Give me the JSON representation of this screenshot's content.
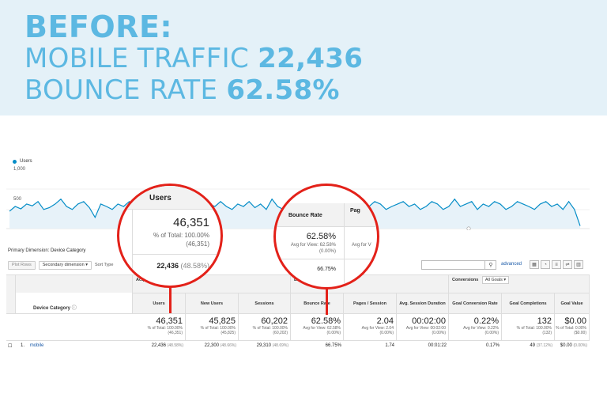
{
  "banner": {
    "before": "BEFORE:",
    "line2_label": "MOBILE TRAFFIC ",
    "line2_value": "22,436",
    "line3_label": "BOUNCE RATE ",
    "line3_value": "62.58%"
  },
  "chart": {
    "legend": "Users",
    "ytick_top": "1,000",
    "ytick_mid": "500"
  },
  "primary_dimension": {
    "label": "Primary Dimension:",
    "value": "Device Category"
  },
  "toolbar": {
    "plot_rows": "Plot Rows",
    "secondary_dimension": "Secondary dimension",
    "sort_type": "Sort Type",
    "advanced": "advanced"
  },
  "table": {
    "device_category": "Device Category",
    "acquisition": "Acquisition",
    "behavior": "Behavior",
    "conversions": "Conversions",
    "all_goals": "All Goals",
    "columns": [
      "Users",
      "New Users",
      "Sessions",
      "Bounce Rate",
      "Pages / Session",
      "Avg. Session Duration",
      "Goal Conversion Rate",
      "Goal Completions",
      "Goal Value"
    ],
    "totals": [
      {
        "big": "46,351",
        "small1": "% of Total: 100.00%",
        "small2": "(46,351)"
      },
      {
        "big": "45,825",
        "small1": "% of Total: 100.00%",
        "small2": "(45,825)"
      },
      {
        "big": "60,202",
        "small1": "% of Total: 100.00%",
        "small2": "(60,202)"
      },
      {
        "big": "62.58%",
        "small1": "Avg for View: 62.58%",
        "small2": "(0.00%)"
      },
      {
        "big": "2.04",
        "small1": "Avg for View: 2.04",
        "small2": "(0.00%)"
      },
      {
        "big": "00:02:00",
        "small1": "Avg for View: 00:02:00",
        "small2": "(0.00%)"
      },
      {
        "big": "0.22%",
        "small1": "Avg for View: 0.22%",
        "small2": "(0.00%)"
      },
      {
        "big": "132",
        "small1": "% of Total: 100.00%",
        "small2": "(132)"
      },
      {
        "big": "$0.00",
        "small1": "% of Total: 0.00%",
        "small2": "($0.00)"
      }
    ],
    "row1": {
      "index": "1.",
      "name": "mobile",
      "cells": [
        {
          "v": "22,436",
          "p": "(48.58%)"
        },
        {
          "v": "22,300",
          "p": "(48.66%)"
        },
        {
          "v": "29,310",
          "p": "(48.69%)"
        },
        {
          "v": "66.75%",
          "p": ""
        },
        {
          "v": "1.74",
          "p": ""
        },
        {
          "v": "00:01:22",
          "p": ""
        },
        {
          "v": "0.17%",
          "p": ""
        },
        {
          "v": "49",
          "p": "(37.12%)"
        },
        {
          "v": "$0.00",
          "p": "(0.00%)"
        }
      ]
    }
  },
  "zoom_users": {
    "header": "Users",
    "total": "46,351",
    "pct_label": "% of Total: 100.00%",
    "pct_value": "(46,351)",
    "row_value": "22,436",
    "row_pct": "(48.58%)"
  },
  "zoom_bounce": {
    "header": "Bounce Rate",
    "header2": "Pag",
    "total": "62.58%",
    "avg_label": "Avg for View: 62.58%",
    "avg_value": "(0.00%)",
    "side_label": "Avg for V",
    "row_value": "66.75%"
  },
  "colors": {
    "banner_bg": "#e4f1f8",
    "banner_text": "#5cb8e2",
    "line": "#058dc7",
    "circle": "#e32119"
  },
  "chart_data": {
    "type": "line",
    "series": [
      {
        "name": "Users",
        "values": [
          440,
          520,
          480,
          560,
          530,
          600,
          470,
          500,
          560,
          640,
          520,
          470,
          560,
          600,
          500,
          340,
          560,
          520,
          470,
          560,
          520,
          600,
          500,
          560,
          470,
          520,
          600,
          480,
          560,
          520,
          600,
          470,
          560,
          620,
          500,
          560,
          520,
          600,
          520,
          470,
          560,
          520,
          600,
          500,
          560,
          470,
          640,
          520,
          470,
          560,
          600,
          520,
          470,
          560,
          620,
          600,
          520,
          560,
          470,
          520,
          600,
          560,
          480,
          520,
          600,
          560,
          470,
          520,
          560,
          600,
          520,
          560,
          470,
          520,
          600,
          560,
          470,
          520,
          640,
          520,
          560,
          600,
          470,
          560,
          520,
          600,
          560,
          470,
          520,
          600,
          560,
          520,
          470,
          560,
          600,
          520,
          560,
          470,
          600,
          470,
          200
        ]
      }
    ],
    "ylim": [
      0,
      1000
    ]
  }
}
